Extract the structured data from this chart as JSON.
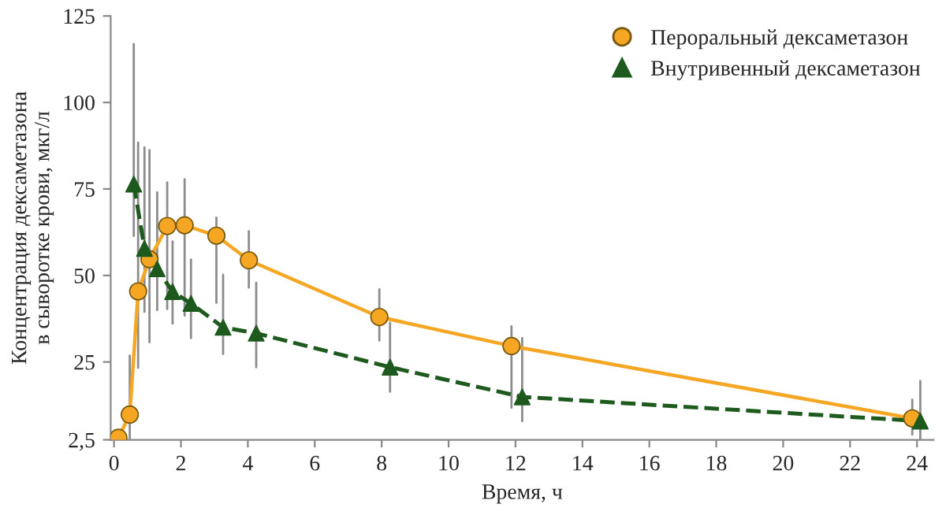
{
  "chart_data": {
    "type": "line",
    "xlabel": "Время, ч",
    "ylabel": "Концентрация дексаметазона\nв сыворотке крови, мкг/л",
    "xlim": [
      -0.1,
      24.5
    ],
    "xticks": [
      0,
      2,
      4,
      6,
      8,
      10,
      12,
      14,
      16,
      18,
      20,
      22,
      24
    ],
    "ylim": [
      2.5,
      125
    ],
    "yticks": [
      {
        "value": 2.5,
        "label": "2,5"
      },
      25,
      50,
      75,
      100,
      125
    ],
    "grid": false,
    "legend": "top right",
    "series": [
      {
        "name": "Пероральный дексаметазон",
        "color": "#f5a623",
        "marker": "circle",
        "line_style": "solid",
        "x": [
          0.13,
          0.47,
          0.72,
          1.06,
          1.59,
          2.11,
          3.06,
          4.03,
          7.93,
          11.88,
          23.86
        ],
        "values": [
          3.1,
          9.8,
          45.4,
          54.7,
          64.3,
          64.5,
          61.5,
          54.4,
          38.0,
          29.6,
          8.7
        ],
        "errors": [
          null,
          [
            2.5,
            26.8
          ],
          [
            23.3,
            88.4
          ],
          [
            30.7,
            86.2
          ],
          [
            40.3,
            76.9
          ],
          [
            38.4,
            77.8
          ],
          [
            42.1,
            66.7
          ],
          [
            46.5,
            62.8
          ],
          [
            31.2,
            46.0
          ],
          [
            11.8,
            35.3
          ],
          [
            4.0,
            14.1
          ]
        ]
      },
      {
        "name": "Внутривенный дексаметазон",
        "color": "#1e5a1e",
        "marker": "triangle",
        "line_style": "dashed",
        "x": [
          0.59,
          0.91,
          1.29,
          1.75,
          2.3,
          3.26,
          4.25,
          8.25,
          12.2,
          24.1
        ],
        "values": [
          76.4,
          57.8,
          51.9,
          45.3,
          41.9,
          35.0,
          33.3,
          23.5,
          14.9,
          7.9
        ],
        "errors": [
          [
            61.4,
            116.9
          ],
          [
            39.5,
            87.0
          ],
          [
            40.0,
            74.0
          ],
          [
            36.1,
            59.8
          ],
          [
            31.9,
            54.6
          ],
          [
            27.3,
            50.2
          ],
          [
            23.5,
            47.9
          ],
          [
            16.4,
            36.3
          ],
          [
            7.9,
            31.9
          ],
          [
            2.5,
            19.5
          ]
        ]
      }
    ]
  }
}
